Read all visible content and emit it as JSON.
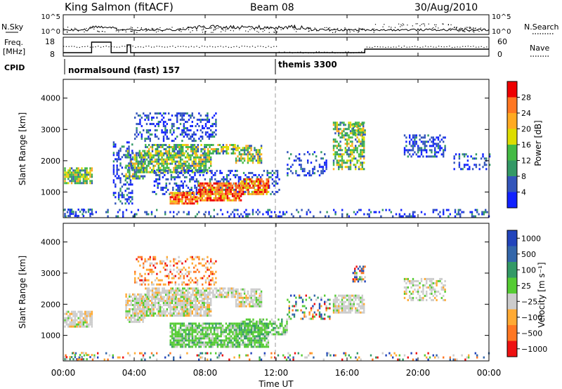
{
  "header": {
    "title": "King Salmon (fitACF)",
    "beam": "Beam 08",
    "date": "30/Aug/2010"
  },
  "noise_panel": {
    "left_label": "N.Sky",
    "right_label": "N.Search",
    "ticks": [
      "10^5",
      "10^0"
    ]
  },
  "freq_panel": {
    "label_line1": "Freq.",
    "label_line2": "[MHz]",
    "left_ticks": [
      "18",
      "8"
    ],
    "right_ticks": [
      "60",
      "0"
    ],
    "right_label": "Nave"
  },
  "cpid": {
    "label": "CPID",
    "segments": [
      {
        "name": "normalsound (fast) 157",
        "start_hour": 0
      },
      {
        "name": "themis 3300",
        "start_hour": 12
      }
    ]
  },
  "time_axis": {
    "title": "Time UT",
    "ticks": [
      "00:00",
      "04:00",
      "08:00",
      "12:00",
      "16:00",
      "20:00",
      "00:00"
    ]
  },
  "chart_data": [
    {
      "type": "heatmap",
      "name": "power",
      "ylabel": "Slant Range [km]",
      "xlim_hours": [
        0,
        24
      ],
      "ylim_km": [
        180,
        4600
      ],
      "yticks": [
        "4000",
        "3000",
        "2000",
        "1000"
      ],
      "colorbar": {
        "label": "Power [dB]",
        "ticks": [
          "28",
          "24",
          "20",
          "16",
          "12",
          "8",
          "4"
        ],
        "colors": [
          "#ee0000",
          "#ff7722",
          "#ffaa22",
          "#dddd00",
          "#44bb44",
          "#339966",
          "#3355bb",
          "#1122ff"
        ]
      },
      "regions": [
        {
          "t0": 0.05,
          "t1": 1.6,
          "r0": 1250,
          "r1": 1750,
          "band": "mid",
          "d": 0.8
        },
        {
          "t0": 0.05,
          "t1": 1.6,
          "r0": 200,
          "r1": 450,
          "band": "low",
          "d": 0.5
        },
        {
          "t0": 2.8,
          "t1": 3.9,
          "r0": 600,
          "r1": 2600,
          "band": "low",
          "d": 0.35
        },
        {
          "t0": 3.5,
          "t1": 4.6,
          "r0": 1400,
          "r1": 2300,
          "band": "mid",
          "d": 0.6
        },
        {
          "t0": 4.0,
          "t1": 8.3,
          "r0": 1600,
          "r1": 2150,
          "band": "mid",
          "d": 0.75
        },
        {
          "t0": 4.6,
          "t1": 9.7,
          "r0": 2200,
          "r1": 2500,
          "band": "mid",
          "d": 0.7
        },
        {
          "t0": 9.7,
          "t1": 11.2,
          "r0": 1900,
          "r1": 2500,
          "band": "mid",
          "d": 0.65
        },
        {
          "t0": 4.0,
          "t1": 8.6,
          "r0": 2600,
          "r1": 3500,
          "band": "low",
          "d": 0.35
        },
        {
          "t0": 5.0,
          "t1": 12.2,
          "r0": 900,
          "r1": 1700,
          "band": "low",
          "d": 0.35
        },
        {
          "t0": 6.0,
          "t1": 7.6,
          "r0": 600,
          "r1": 1000,
          "band": "high",
          "d": 0.9
        },
        {
          "t0": 7.6,
          "t1": 10.0,
          "r0": 700,
          "r1": 1300,
          "band": "high",
          "d": 0.85
        },
        {
          "t0": 10.0,
          "t1": 11.6,
          "r0": 900,
          "r1": 1400,
          "band": "high",
          "d": 0.7
        },
        {
          "t0": 12.6,
          "t1": 14.8,
          "r0": 1500,
          "r1": 2300,
          "band": "low",
          "d": 0.3
        },
        {
          "t0": 15.2,
          "t1": 17.0,
          "r0": 1700,
          "r1": 3200,
          "band": "mid",
          "d": 0.55
        },
        {
          "t0": 16.3,
          "t1": 17.0,
          "r0": 2800,
          "r1": 3200,
          "band": "mid",
          "d": 0.8
        },
        {
          "t0": 19.2,
          "t1": 21.5,
          "r0": 2100,
          "r1": 2800,
          "band": "low",
          "d": 0.45
        },
        {
          "t0": 22.0,
          "t1": 24.0,
          "r0": 1700,
          "r1": 2200,
          "band": "low",
          "d": 0.25
        },
        {
          "t0": 0.0,
          "t1": 24.0,
          "r0": 190,
          "r1": 420,
          "band": "low",
          "d": 0.22
        }
      ]
    },
    {
      "type": "heatmap",
      "name": "velocity",
      "ylabel": "Slant Range [km]",
      "xlim_hours": [
        0,
        24
      ],
      "ylim_km": [
        180,
        4600
      ],
      "yticks": [
        "4000",
        "3000",
        "2000",
        "1000"
      ],
      "colorbar": {
        "label": "Velocity [m s⁻¹]",
        "ticks": [
          "1000",
          "500",
          "100",
          "25",
          "−25",
          "−100",
          "−500",
          "−1000"
        ],
        "colors": [
          "#2244bb",
          "#3366aa",
          "#339966",
          "#55cc33",
          "#cccccc",
          "#ffaa33",
          "#ff7722",
          "#ee1111"
        ]
      },
      "regions": [
        {
          "t0": 0.05,
          "t1": 1.6,
          "r0": 1250,
          "r1": 1750,
          "band": "gray",
          "d": 0.85
        },
        {
          "t0": 0.05,
          "t1": 1.6,
          "r0": 200,
          "r1": 450,
          "band": "mix",
          "d": 0.3
        },
        {
          "t0": 3.5,
          "t1": 4.6,
          "r0": 1400,
          "r1": 2300,
          "band": "gray",
          "d": 0.7
        },
        {
          "t0": 4.0,
          "t1": 8.3,
          "r0": 1600,
          "r1": 2150,
          "band": "gray",
          "d": 0.85
        },
        {
          "t0": 4.6,
          "t1": 9.7,
          "r0": 2200,
          "r1": 2500,
          "band": "gray",
          "d": 0.8
        },
        {
          "t0": 9.7,
          "t1": 11.2,
          "r0": 1900,
          "r1": 2500,
          "band": "gray",
          "d": 0.75
        },
        {
          "t0": 4.0,
          "t1": 8.6,
          "r0": 2600,
          "r1": 3500,
          "band": "warm",
          "d": 0.3
        },
        {
          "t0": 6.0,
          "t1": 11.6,
          "r0": 600,
          "r1": 1350,
          "band": "green",
          "d": 0.85
        },
        {
          "t0": 10.0,
          "t1": 12.6,
          "r0": 1000,
          "r1": 1500,
          "band": "green",
          "d": 0.55
        },
        {
          "t0": 12.6,
          "t1": 15.0,
          "r0": 1500,
          "r1": 2300,
          "band": "mix",
          "d": 0.3
        },
        {
          "t0": 15.2,
          "t1": 17.0,
          "r0": 1700,
          "r1": 2300,
          "band": "gray",
          "d": 0.8
        },
        {
          "t0": 16.3,
          "t1": 17.0,
          "r0": 2700,
          "r1": 3200,
          "band": "mix",
          "d": 0.7
        },
        {
          "t0": 19.2,
          "t1": 21.5,
          "r0": 2100,
          "r1": 2800,
          "band": "gray",
          "d": 0.45
        },
        {
          "t0": 0.0,
          "t1": 24.0,
          "r0": 190,
          "r1": 420,
          "band": "mix",
          "d": 0.18
        }
      ]
    }
  ]
}
